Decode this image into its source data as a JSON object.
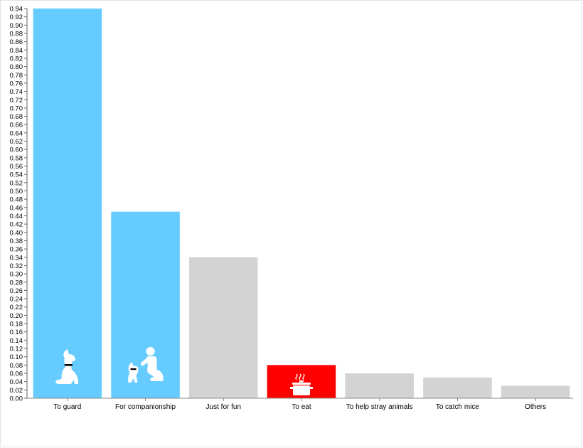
{
  "chart_data": {
    "type": "bar",
    "title": "",
    "xlabel": "",
    "ylabel": "",
    "categories": [
      "To guard",
      "For companionship",
      "Just for fun",
      "To eat",
      "To help stray animals",
      "To catch mice",
      "Others"
    ],
    "values": [
      0.94,
      0.45,
      0.34,
      0.08,
      0.06,
      0.05,
      0.03
    ],
    "colors": [
      "#66ccff",
      "#66ccff",
      "#d3d3d3",
      "#ff0000",
      "#d3d3d3",
      "#d3d3d3",
      "#d3d3d3"
    ],
    "icons": [
      "dog-icon",
      "person-with-dog-icon",
      "",
      "cooking-pot-icon",
      "",
      "",
      ""
    ],
    "ylim": [
      0,
      0.94
    ],
    "ytick_step": 0.02,
    "grid": false,
    "legend": "none"
  }
}
